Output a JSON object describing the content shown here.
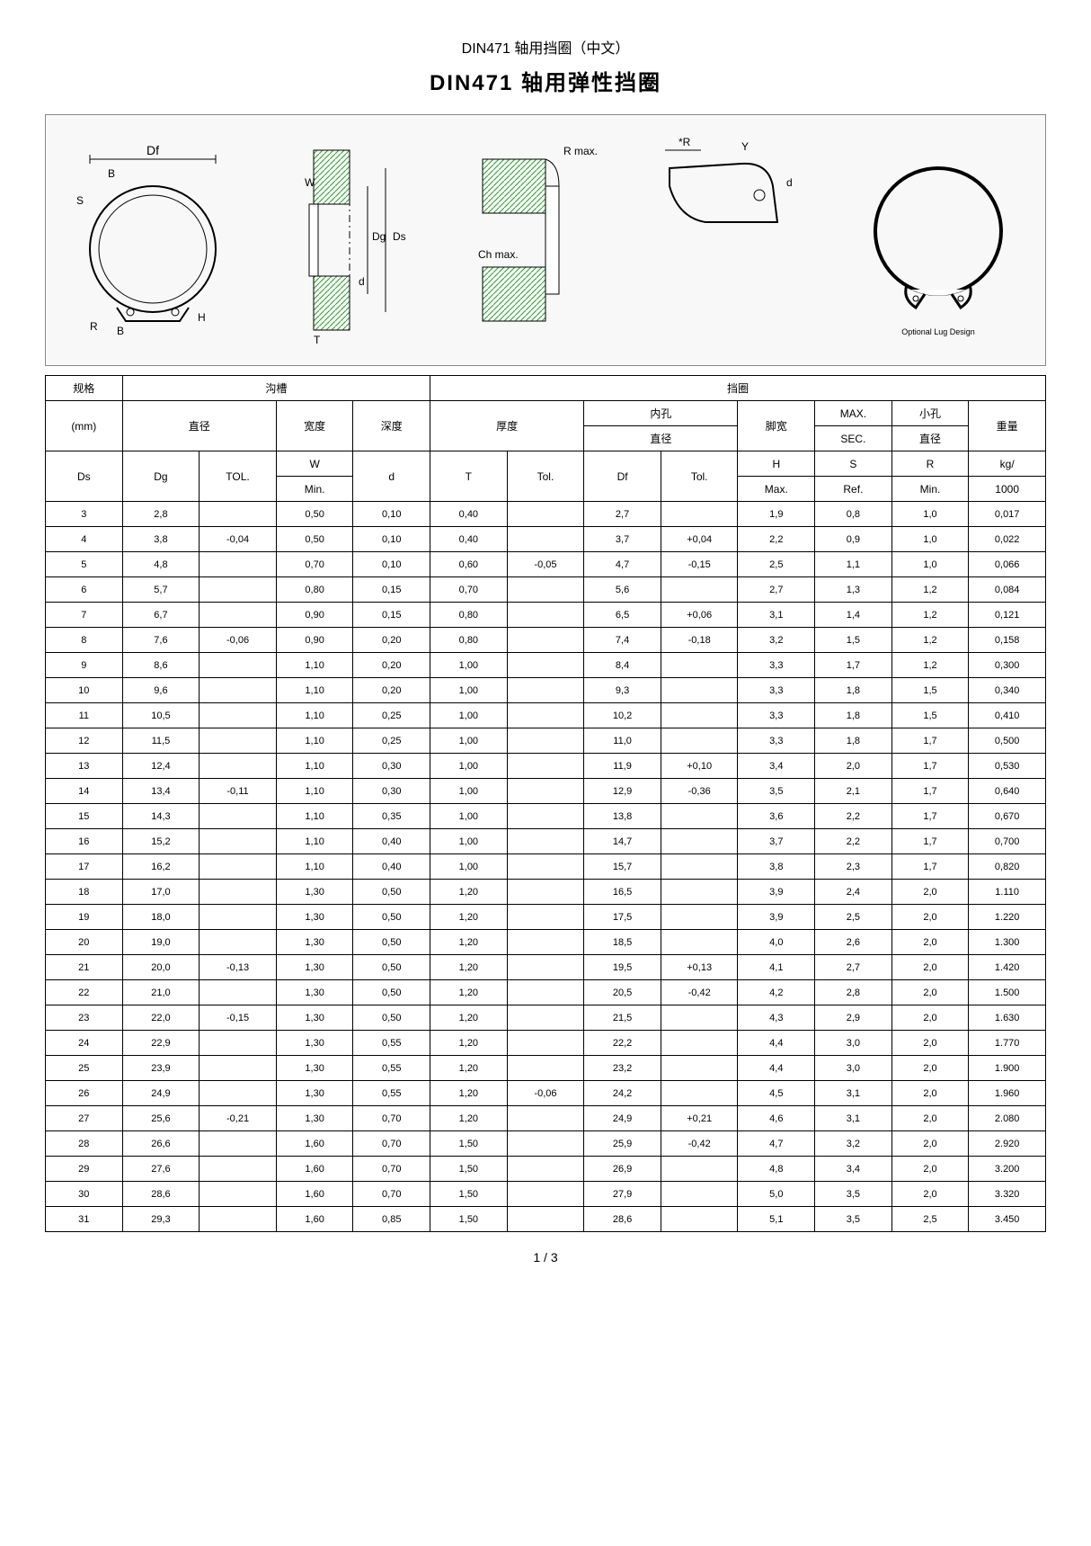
{
  "header": {
    "subtitle": "DIN471 轴用挡圈（中文）",
    "title": "DIN471 轴用弹性挡圈"
  },
  "diagram_labels": {
    "df": "Df",
    "b": "B",
    "s": "S",
    "r": "R",
    "h": "H",
    "t": "T",
    "w": "W",
    "dg": "Dg",
    "ds": "Ds",
    "d": "d",
    "rmax": "R max.",
    "chmax": "Ch max.",
    "star_r": "*R",
    "y": "Y",
    "optional": "Optional Lug Design"
  },
  "table": {
    "group_headers": {
      "spec": "规格",
      "groove": "沟槽",
      "ring": "挡圈"
    },
    "sub_headers": {
      "mm": "(mm)",
      "diameter": "直径",
      "width": "宽度",
      "depth": "深度",
      "thickness": "厚度",
      "bore_dia": "内孔",
      "bore_dia2": "直径",
      "lug_width": "脚宽",
      "max_sec": "MAX.",
      "max_sec2": "SEC.",
      "hole_dia": "小孔",
      "hole_dia2": "直径",
      "weight": "重量"
    },
    "col_headers": {
      "ds": "Ds",
      "dg": "Dg",
      "tol1": "TOL.",
      "w": "W",
      "w2": "Min.",
      "d": "d",
      "t": "T",
      "tol2": "Tol.",
      "df": "Df",
      "tol3": "Tol.",
      "h": "H",
      "h2": "Max.",
      "s": "S",
      "s2": "Ref.",
      "r": "R",
      "r2": "Min.",
      "kg": "kg/",
      "kg2": "1000"
    },
    "rows": [
      {
        "ds": "3",
        "dg": "2,8",
        "tol1": "",
        "w": "0,50",
        "d": "0,10",
        "t": "0,40",
        "tol2": "",
        "df": "2,7",
        "tol3": "",
        "h": "1,9",
        "s": "0,8",
        "r": "1,0",
        "kg": "0,017"
      },
      {
        "ds": "4",
        "dg": "3,8",
        "tol1": "-0,04",
        "w": "0,50",
        "d": "0,10",
        "t": "0,40",
        "tol2": "",
        "df": "3,7",
        "tol3": "+0,04",
        "h": "2,2",
        "s": "0,9",
        "r": "1,0",
        "kg": "0,022"
      },
      {
        "ds": "5",
        "dg": "4,8",
        "tol1": "",
        "w": "0,70",
        "d": "0,10",
        "t": "0,60",
        "tol2": "-0,05",
        "df": "4,7",
        "tol3": "-0,15",
        "h": "2,5",
        "s": "1,1",
        "r": "1,0",
        "kg": "0,066"
      },
      {
        "ds": "6",
        "dg": "5,7",
        "tol1": "",
        "w": "0,80",
        "d": "0,15",
        "t": "0,70",
        "tol2": "",
        "df": "5,6",
        "tol3": "",
        "h": "2,7",
        "s": "1,3",
        "r": "1,2",
        "kg": "0,084"
      },
      {
        "ds": "7",
        "dg": "6,7",
        "tol1": "",
        "w": "0,90",
        "d": "0,15",
        "t": "0,80",
        "tol2": "",
        "df": "6,5",
        "tol3": "+0,06",
        "h": "3,1",
        "s": "1,4",
        "r": "1,2",
        "kg": "0,121"
      },
      {
        "ds": "8",
        "dg": "7,6",
        "tol1": "-0,06",
        "w": "0,90",
        "d": "0,20",
        "t": "0,80",
        "tol2": "",
        "df": "7,4",
        "tol3": "-0,18",
        "h": "3,2",
        "s": "1,5",
        "r": "1,2",
        "kg": "0,158"
      },
      {
        "ds": "9",
        "dg": "8,6",
        "tol1": "",
        "w": "1,10",
        "d": "0,20",
        "t": "1,00",
        "tol2": "",
        "df": "8,4",
        "tol3": "",
        "h": "3,3",
        "s": "1,7",
        "r": "1,2",
        "kg": "0,300"
      },
      {
        "ds": "10",
        "dg": "9,6",
        "tol1": "",
        "w": "1,10",
        "d": "0,20",
        "t": "1,00",
        "tol2": "",
        "df": "9,3",
        "tol3": "",
        "h": "3,3",
        "s": "1,8",
        "r": "1,5",
        "kg": "0,340"
      },
      {
        "ds": "11",
        "dg": "10,5",
        "tol1": "",
        "w": "1,10",
        "d": "0,25",
        "t": "1,00",
        "tol2": "",
        "df": "10,2",
        "tol3": "",
        "h": "3,3",
        "s": "1,8",
        "r": "1,5",
        "kg": "0,410"
      },
      {
        "ds": "12",
        "dg": "11,5",
        "tol1": "",
        "w": "1,10",
        "d": "0,25",
        "t": "1,00",
        "tol2": "",
        "df": "11,0",
        "tol3": "",
        "h": "3,3",
        "s": "1,8",
        "r": "1,7",
        "kg": "0,500"
      },
      {
        "ds": "13",
        "dg": "12,4",
        "tol1": "",
        "w": "1,10",
        "d": "0,30",
        "t": "1,00",
        "tol2": "",
        "df": "11,9",
        "tol3": "+0,10",
        "h": "3,4",
        "s": "2,0",
        "r": "1,7",
        "kg": "0,530"
      },
      {
        "ds": "14",
        "dg": "13,4",
        "tol1": "-0,11",
        "w": "1,10",
        "d": "0,30",
        "t": "1,00",
        "tol2": "",
        "df": "12,9",
        "tol3": "-0,36",
        "h": "3,5",
        "s": "2,1",
        "r": "1,7",
        "kg": "0,640"
      },
      {
        "ds": "15",
        "dg": "14,3",
        "tol1": "",
        "w": "1,10",
        "d": "0,35",
        "t": "1,00",
        "tol2": "",
        "df": "13,8",
        "tol3": "",
        "h": "3,6",
        "s": "2,2",
        "r": "1,7",
        "kg": "0,670"
      },
      {
        "ds": "16",
        "dg": "15,2",
        "tol1": "",
        "w": "1,10",
        "d": "0,40",
        "t": "1,00",
        "tol2": "",
        "df": "14,7",
        "tol3": "",
        "h": "3,7",
        "s": "2,2",
        "r": "1,7",
        "kg": "0,700"
      },
      {
        "ds": "17",
        "dg": "16,2",
        "tol1": "",
        "w": "1,10",
        "d": "0,40",
        "t": "1,00",
        "tol2": "",
        "df": "15,7",
        "tol3": "",
        "h": "3,8",
        "s": "2,3",
        "r": "1,7",
        "kg": "0,820"
      },
      {
        "ds": "18",
        "dg": "17,0",
        "tol1": "",
        "w": "1,30",
        "d": "0,50",
        "t": "1,20",
        "tol2": "",
        "df": "16,5",
        "tol3": "",
        "h": "3,9",
        "s": "2,4",
        "r": "2,0",
        "kg": "1.110"
      },
      {
        "ds": "19",
        "dg": "18,0",
        "tol1": "",
        "w": "1,30",
        "d": "0,50",
        "t": "1,20",
        "tol2": "",
        "df": "17,5",
        "tol3": "",
        "h": "3,9",
        "s": "2,5",
        "r": "2,0",
        "kg": "1.220"
      },
      {
        "ds": "20",
        "dg": "19,0",
        "tol1": "",
        "w": "1,30",
        "d": "0,50",
        "t": "1,20",
        "tol2": "",
        "df": "18,5",
        "tol3": "",
        "h": "4,0",
        "s": "2,6",
        "r": "2,0",
        "kg": "1.300"
      },
      {
        "ds": "21",
        "dg": "20,0",
        "tol1": "-0,13",
        "w": "1,30",
        "d": "0,50",
        "t": "1,20",
        "tol2": "",
        "df": "19,5",
        "tol3": "+0,13",
        "h": "4,1",
        "s": "2,7",
        "r": "2,0",
        "kg": "1.420"
      },
      {
        "ds": "22",
        "dg": "21,0",
        "tol1": "",
        "w": "1,30",
        "d": "0,50",
        "t": "1,20",
        "tol2": "",
        "df": "20,5",
        "tol3": "-0,42",
        "h": "4,2",
        "s": "2,8",
        "r": "2,0",
        "kg": "1.500"
      },
      {
        "ds": "23",
        "dg": "22,0",
        "tol1": "-0,15",
        "w": "1,30",
        "d": "0,50",
        "t": "1,20",
        "tol2": "",
        "df": "21,5",
        "tol3": "",
        "h": "4,3",
        "s": "2,9",
        "r": "2,0",
        "kg": "1.630"
      },
      {
        "ds": "24",
        "dg": "22,9",
        "tol1": "",
        "w": "1,30",
        "d": "0,55",
        "t": "1,20",
        "tol2": "",
        "df": "22,2",
        "tol3": "",
        "h": "4,4",
        "s": "3,0",
        "r": "2,0",
        "kg": "1.770"
      },
      {
        "ds": "25",
        "dg": "23,9",
        "tol1": "",
        "w": "1,30",
        "d": "0,55",
        "t": "1,20",
        "tol2": "",
        "df": "23,2",
        "tol3": "",
        "h": "4,4",
        "s": "3,0",
        "r": "2,0",
        "kg": "1.900"
      },
      {
        "ds": "26",
        "dg": "24,9",
        "tol1": "",
        "w": "1,30",
        "d": "0,55",
        "t": "1,20",
        "tol2": "-0,06",
        "df": "24,2",
        "tol3": "",
        "h": "4,5",
        "s": "3,1",
        "r": "2,0",
        "kg": "1.960"
      },
      {
        "ds": "27",
        "dg": "25,6",
        "tol1": "-0,21",
        "w": "1,30",
        "d": "0,70",
        "t": "1,20",
        "tol2": "",
        "df": "24,9",
        "tol3": "+0,21",
        "h": "4,6",
        "s": "3,1",
        "r": "2,0",
        "kg": "2.080"
      },
      {
        "ds": "28",
        "dg": "26,6",
        "tol1": "",
        "w": "1,60",
        "d": "0,70",
        "t": "1,50",
        "tol2": "",
        "df": "25,9",
        "tol3": "-0,42",
        "h": "4,7",
        "s": "3,2",
        "r": "2,0",
        "kg": "2.920"
      },
      {
        "ds": "29",
        "dg": "27,6",
        "tol1": "",
        "w": "1,60",
        "d": "0,70",
        "t": "1,50",
        "tol2": "",
        "df": "26,9",
        "tol3": "",
        "h": "4,8",
        "s": "3,4",
        "r": "2,0",
        "kg": "3.200"
      },
      {
        "ds": "30",
        "dg": "28,6",
        "tol1": "",
        "w": "1,60",
        "d": "0,70",
        "t": "1,50",
        "tol2": "",
        "df": "27,9",
        "tol3": "",
        "h": "5,0",
        "s": "3,5",
        "r": "2,0",
        "kg": "3.320"
      },
      {
        "ds": "31",
        "dg": "29,3",
        "tol1": "",
        "w": "1,60",
        "d": "0,85",
        "t": "1,50",
        "tol2": "",
        "df": "28,6",
        "tol3": "",
        "h": "5,1",
        "s": "3,5",
        "r": "2,5",
        "kg": "3.450"
      }
    ],
    "col_keys": [
      "ds",
      "dg",
      "tol1",
      "w",
      "d",
      "t",
      "tol2",
      "df",
      "tol3",
      "h",
      "s",
      "r",
      "kg"
    ]
  },
  "pager": "1 / 3"
}
